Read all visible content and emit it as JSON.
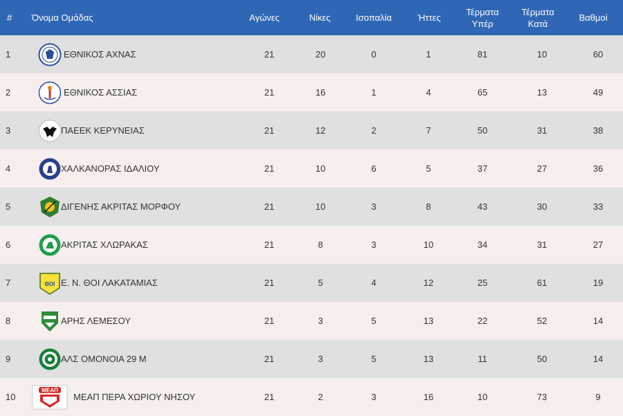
{
  "header": {
    "num": "#",
    "team_name": "Όνομα Ομάδας",
    "played": "Αγώνες",
    "wins": "Νίκες",
    "draws": "Ισοπαλία",
    "losses": "Ήττες",
    "goals_for_1": "Τέρματα",
    "goals_for_2": "Υπέρ",
    "goals_against_1": "Τέρματα",
    "goals_against_2": "Κατά",
    "points": "Βαθμοί"
  },
  "rows": [
    {
      "pos": "1",
      "name": "ΕΘΝΙΚΟΣ ΑΧΝΑΣ",
      "logo": "ethnikos-achnas-crest",
      "played": "21",
      "wins": "20",
      "draws": "0",
      "losses": "1",
      "gf": "81",
      "ga": "10",
      "pts": "60"
    },
    {
      "pos": "2",
      "name": "ΕΘΝΙΚΟΣ ΑΣΣΙΑΣ",
      "logo": "ethnikos-assias-crest",
      "played": "21",
      "wins": "16",
      "draws": "1",
      "losses": "4",
      "gf": "65",
      "ga": "13",
      "pts": "49"
    },
    {
      "pos": "3",
      "name": "ΠΑΕΕΚ ΚΕΡΥΝΕΙΑΣ",
      "logo": "paeek-crest",
      "played": "21",
      "wins": "12",
      "draws": "2",
      "losses": "7",
      "gf": "50",
      "ga": "31",
      "pts": "38"
    },
    {
      "pos": "4",
      "name": "ΧΑΛΚΑΝΟΡΑΣ ΙΔΑΛΙΟΥ",
      "logo": "chalkanoras-crest",
      "played": "21",
      "wins": "10",
      "draws": "6",
      "losses": "5",
      "gf": "37",
      "ga": "27",
      "pts": "36"
    },
    {
      "pos": "5",
      "name": "ΔΙΓΕΝΗΣ ΑΚΡΙΤΑΣ ΜΟΡΦΟΥ",
      "logo": "digenis-crest",
      "played": "21",
      "wins": "10",
      "draws": "3",
      "losses": "8",
      "gf": "43",
      "ga": "30",
      "pts": "33"
    },
    {
      "pos": "6",
      "name": "ΑΚΡΙΤΑΣ ΧΛΩΡΑΚΑΣ",
      "logo": "akritas-crest",
      "played": "21",
      "wins": "8",
      "draws": "3",
      "losses": "10",
      "gf": "34",
      "ga": "31",
      "pts": "27"
    },
    {
      "pos": "7",
      "name": "Ε. Ν. ΘΟΙ ΛΑΚΑΤΑΜΙΑΣ",
      "logo": "thoi-crest",
      "played": "21",
      "wins": "5",
      "draws": "4",
      "losses": "12",
      "gf": "25",
      "ga": "61",
      "pts": "19"
    },
    {
      "pos": "8",
      "name": "ΑΡΗΣ ΛΕΜΕΣΟΥ",
      "logo": "aris-crest",
      "played": "21",
      "wins": "3",
      "draws": "5",
      "losses": "13",
      "gf": "22",
      "ga": "52",
      "pts": "14"
    },
    {
      "pos": "9",
      "name": "ΑΛΣ ΟΜΟΝΟΙΑ 29 Μ",
      "logo": "omonoia-crest",
      "played": "21",
      "wins": "3",
      "draws": "5",
      "losses": "13",
      "gf": "11",
      "ga": "50",
      "pts": "14"
    },
    {
      "pos": "10",
      "name": "ΜΕΑΠ ΠΕΡΑ ΧΩΡΙΟΥ ΝΗΣΟΥ",
      "logo": "meap-crest",
      "played": "21",
      "wins": "2",
      "draws": "3",
      "losses": "16",
      "gf": "10",
      "ga": "73",
      "pts": "9"
    }
  ],
  "logo_texts": {
    "meap": "ΜΕΑΠ",
    "thoi": "ΘΟΙ"
  },
  "colors": {
    "header_bg": "#2f67b5",
    "row_odd": "#e0e0e0",
    "row_even": "#f7eeee"
  }
}
